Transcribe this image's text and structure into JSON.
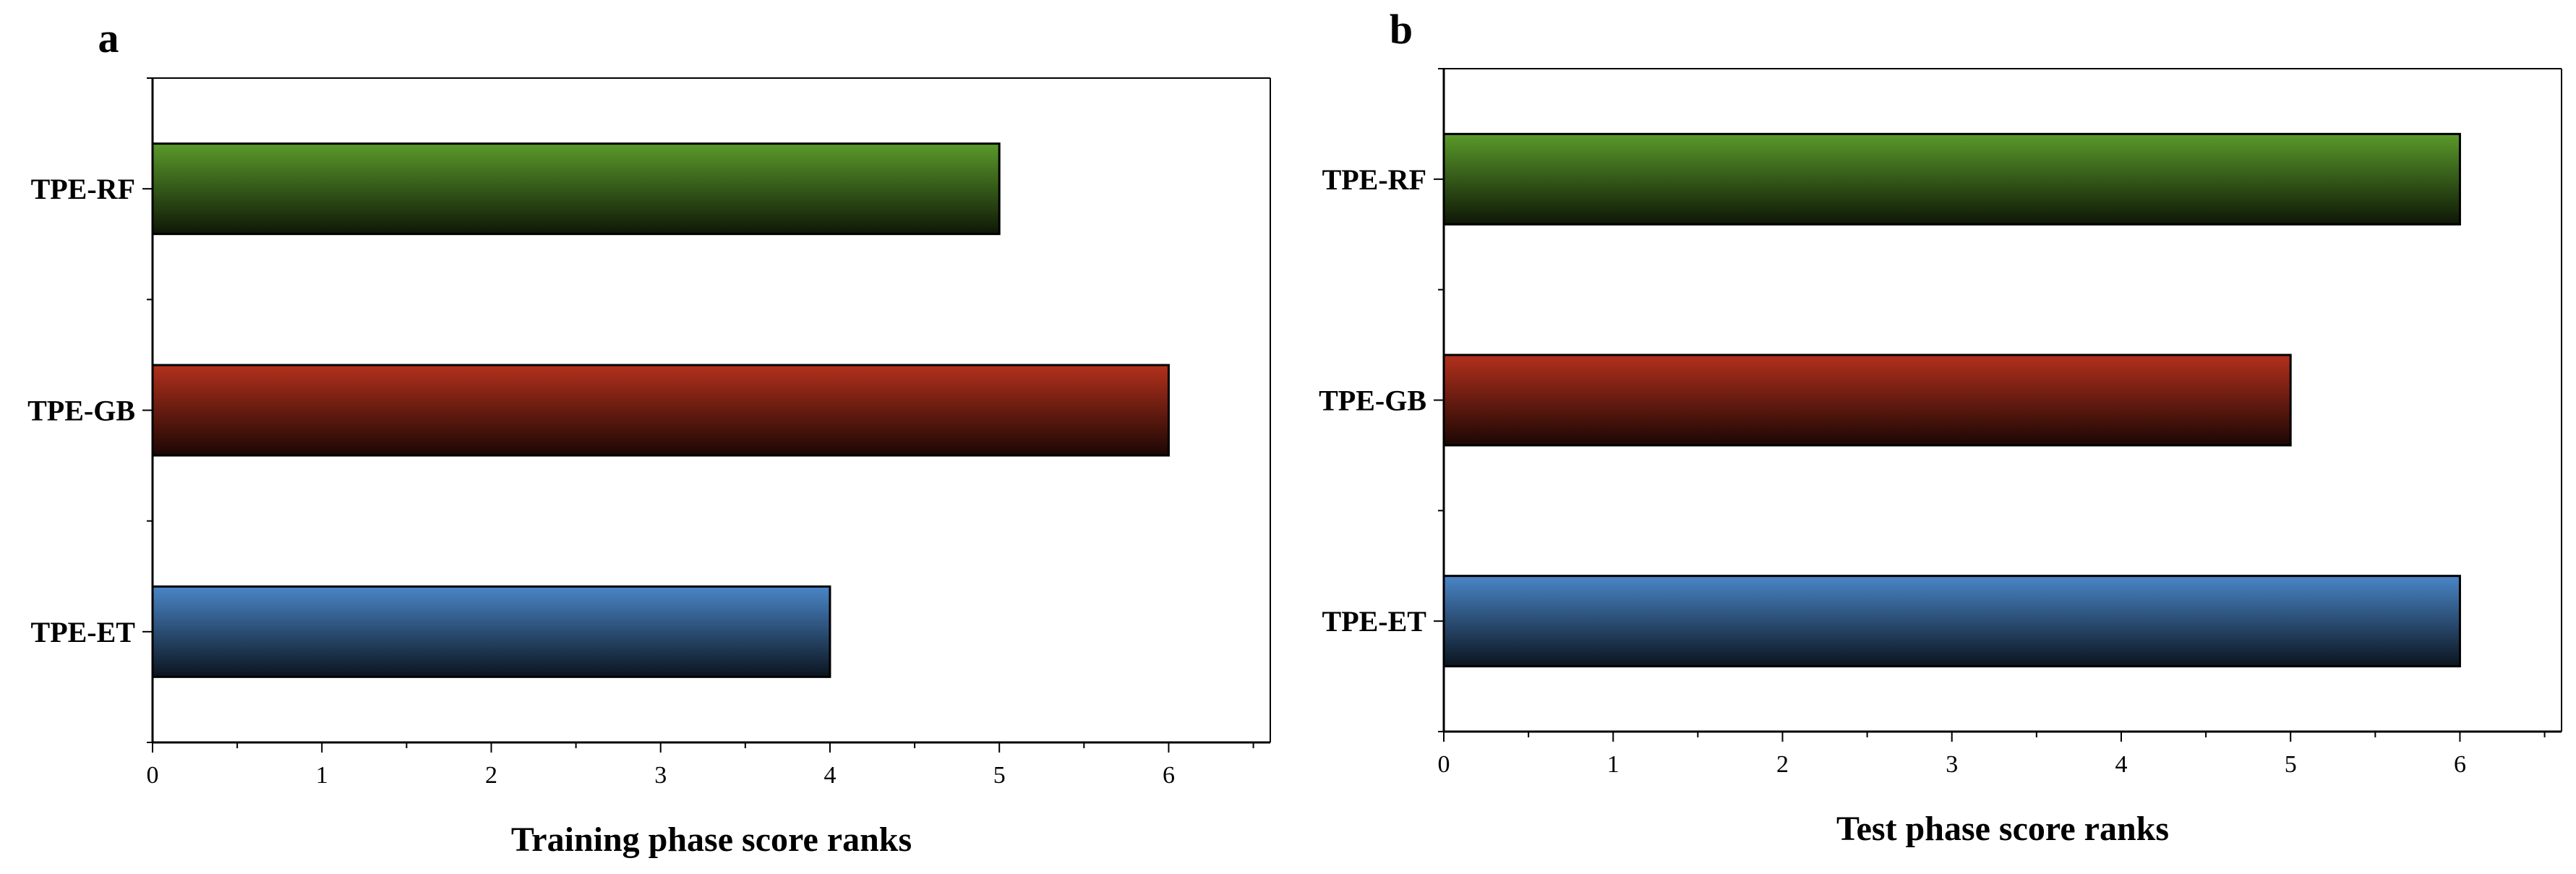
{
  "chart_data": [
    {
      "type": "bar",
      "orientation": "horizontal",
      "panel": "a",
      "title": "",
      "categories": [
        "TPE-RF",
        "TPE-GB",
        "TPE-ET"
      ],
      "values": [
        5,
        6,
        4
      ],
      "xlabel": "Training phase score ranks",
      "ylabel": "",
      "xlim": [
        0,
        6.6
      ],
      "xticks": [
        0,
        1,
        2,
        3,
        4,
        5,
        6
      ],
      "colors": [
        "#5a9a2a",
        "#b3301c",
        "#4a86c8"
      ],
      "grid": false,
      "legend": "none"
    },
    {
      "type": "bar",
      "orientation": "horizontal",
      "panel": "b",
      "title": "",
      "categories": [
        "TPE-RF",
        "TPE-GB",
        "TPE-ET"
      ],
      "values": [
        6,
        5,
        6
      ],
      "xlabel": "Test phase score ranks",
      "ylabel": "",
      "xlim": [
        0,
        6.6
      ],
      "xticks": [
        0,
        1,
        2,
        3,
        4,
        5,
        6
      ],
      "colors": [
        "#5a9a2a",
        "#b3301c",
        "#4a86c8"
      ],
      "grid": false,
      "legend": "none"
    }
  ]
}
